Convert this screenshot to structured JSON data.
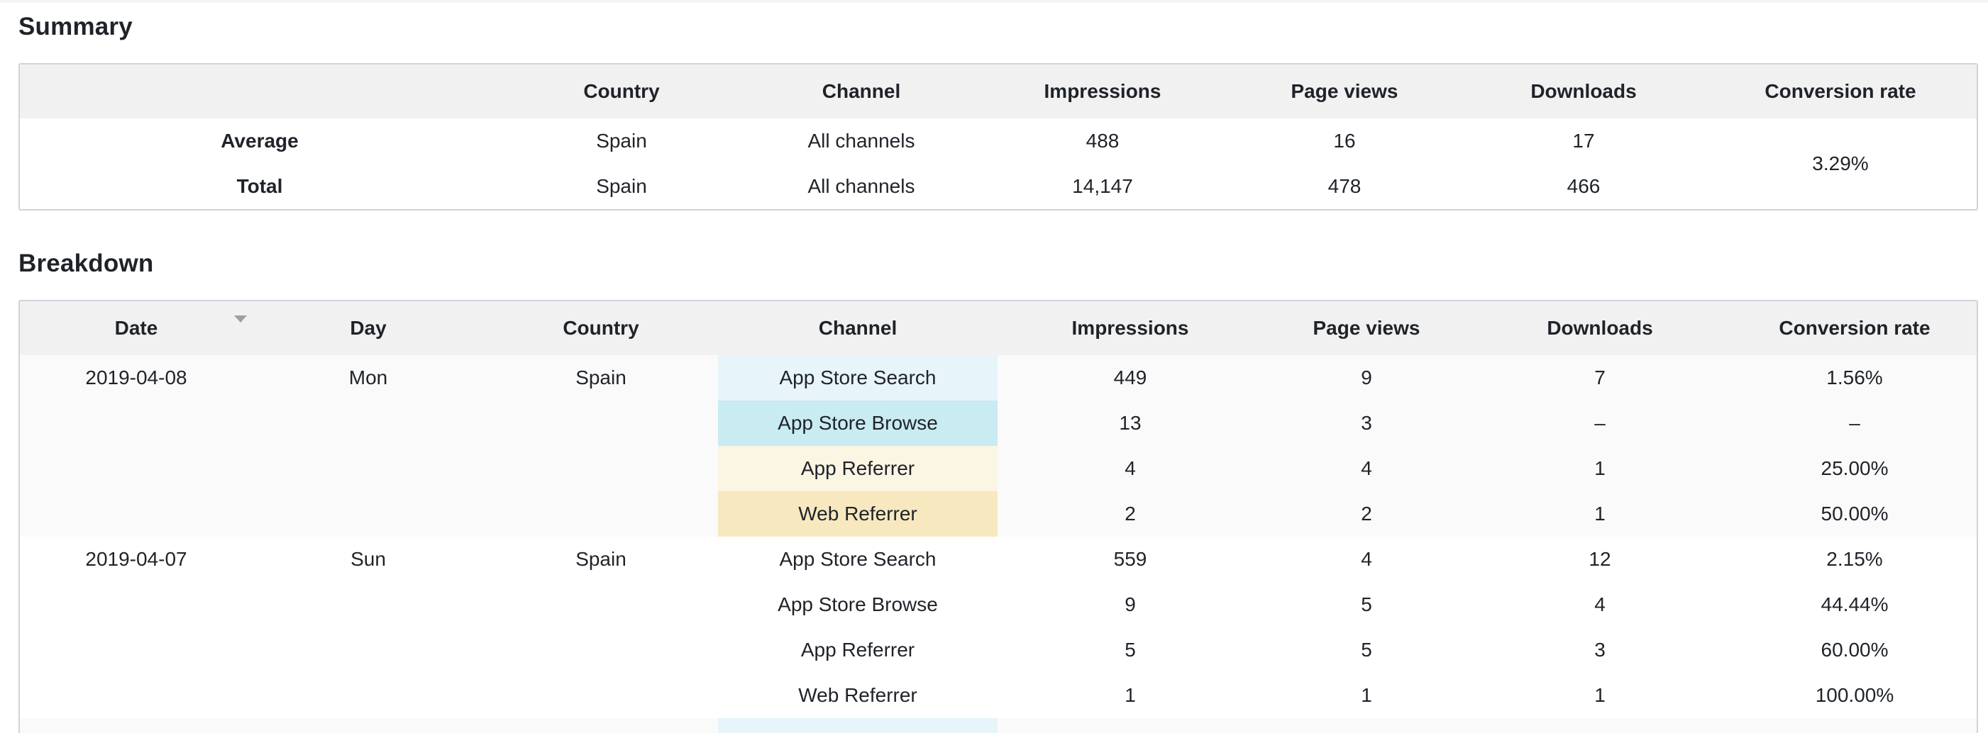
{
  "summary": {
    "title": "Summary",
    "headers": [
      "",
      "Country",
      "Channel",
      "Impressions",
      "Page views",
      "Downloads",
      "Conversion rate"
    ],
    "rows": [
      {
        "label": "Average",
        "country": "Spain",
        "channel": "All channels",
        "impressions": "488",
        "page_views": "16",
        "downloads": "17"
      },
      {
        "label": "Total",
        "country": "Spain",
        "channel": "All channels",
        "impressions": "14,147",
        "page_views": "478",
        "downloads": "466"
      }
    ],
    "conversion_rate": "3.29%"
  },
  "breakdown": {
    "title": "Breakdown",
    "headers": [
      "Date",
      "Day",
      "Country",
      "Channel",
      "Impressions",
      "Page views",
      "Downloads",
      "Conversion rate"
    ],
    "sort_icon": "caret-down-icon",
    "groups": [
      {
        "date": "2019-04-08",
        "day": "Mon",
        "country": "Spain",
        "rows": [
          {
            "channel": "App Store Search",
            "impressions": "449",
            "page_views": "9",
            "downloads": "7",
            "conversion_rate": "1.56%"
          },
          {
            "channel": "App Store Browse",
            "impressions": "13",
            "page_views": "3",
            "downloads": "–",
            "conversion_rate": "–"
          },
          {
            "channel": "App Referrer",
            "impressions": "4",
            "page_views": "4",
            "downloads": "1",
            "conversion_rate": "25.00%"
          },
          {
            "channel": "Web Referrer",
            "impressions": "2",
            "page_views": "2",
            "downloads": "1",
            "conversion_rate": "50.00%"
          }
        ]
      },
      {
        "date": "2019-04-07",
        "day": "Sun",
        "country": "Spain",
        "rows": [
          {
            "channel": "App Store Search",
            "impressions": "559",
            "page_views": "4",
            "downloads": "12",
            "conversion_rate": "2.15%"
          },
          {
            "channel": "App Store Browse",
            "impressions": "9",
            "page_views": "5",
            "downloads": "4",
            "conversion_rate": "44.44%"
          },
          {
            "channel": "App Referrer",
            "impressions": "5",
            "page_views": "5",
            "downloads": "3",
            "conversion_rate": "60.00%"
          },
          {
            "channel": "Web Referrer",
            "impressions": "1",
            "page_views": "1",
            "downloads": "1",
            "conversion_rate": "100.00%"
          }
        ]
      }
    ],
    "colors": {
      "app_store_search": "#e7f4f9",
      "app_store_browse": "#c9ebf2",
      "app_referrer": "#fbf5e3",
      "web_referrer": "#f7e8bf"
    }
  }
}
